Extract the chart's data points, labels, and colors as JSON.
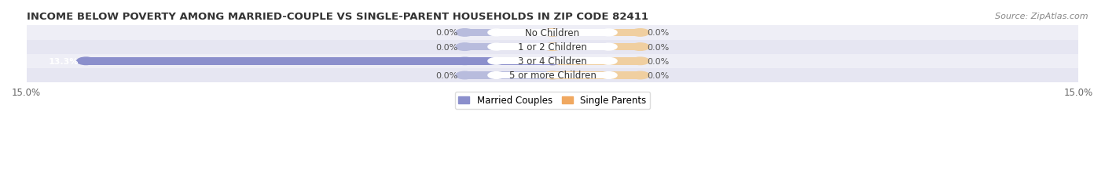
{
  "title": "INCOME BELOW POVERTY AMONG MARRIED-COUPLE VS SINGLE-PARENT HOUSEHOLDS IN ZIP CODE 82411",
  "source": "Source: ZipAtlas.com",
  "categories": [
    "No Children",
    "1 or 2 Children",
    "3 or 4 Children",
    "5 or more Children"
  ],
  "married_values": [
    0.0,
    0.0,
    13.3,
    0.0
  ],
  "single_values": [
    0.0,
    0.0,
    0.0,
    0.0
  ],
  "xlim": [
    -15.0,
    15.0
  ],
  "married_color": "#8b8fcc",
  "married_bg_color": "#b8bcdd",
  "single_color": "#f0a860",
  "single_bg_color": "#f0cfa0",
  "row_colors": [
    "#eeeef6",
    "#e6e6f2"
  ],
  "title_fontsize": 9.5,
  "label_fontsize": 8.5,
  "value_fontsize": 8.0,
  "tick_fontsize": 8.5,
  "source_fontsize": 8.0,
  "legend_labels": [
    "Married Couples",
    "Single Parents"
  ],
  "bar_height": 0.52,
  "min_bar_width": 1.8
}
